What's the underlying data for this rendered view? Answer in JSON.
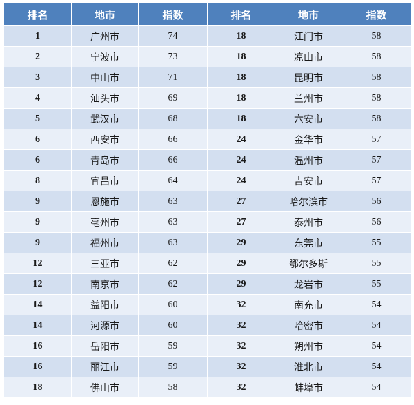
{
  "table": {
    "headers": [
      "排名",
      "地市",
      "指数",
      "排名",
      "地市",
      "指数"
    ],
    "rows": [
      {
        "left": {
          "rank": "1",
          "city": "广州市",
          "index": "74"
        },
        "right": {
          "rank": "18",
          "city": "江门市",
          "index": "58"
        }
      },
      {
        "left": {
          "rank": "2",
          "city": "宁波市",
          "index": "73"
        },
        "right": {
          "rank": "18",
          "city": "凉山市",
          "index": "58"
        }
      },
      {
        "left": {
          "rank": "3",
          "city": "中山市",
          "index": "71"
        },
        "right": {
          "rank": "18",
          "city": "昆明市",
          "index": "58"
        }
      },
      {
        "left": {
          "rank": "4",
          "city": "汕头市",
          "index": "69"
        },
        "right": {
          "rank": "18",
          "city": "兰州市",
          "index": "58"
        }
      },
      {
        "left": {
          "rank": "5",
          "city": "武汉市",
          "index": "68"
        },
        "right": {
          "rank": "18",
          "city": "六安市",
          "index": "58"
        }
      },
      {
        "left": {
          "rank": "6",
          "city": "西安市",
          "index": "66"
        },
        "right": {
          "rank": "24",
          "city": "金华市",
          "index": "57"
        }
      },
      {
        "left": {
          "rank": "6",
          "city": "青岛市",
          "index": "66"
        },
        "right": {
          "rank": "24",
          "city": "温州市",
          "index": "57"
        }
      },
      {
        "left": {
          "rank": "8",
          "city": "宜昌市",
          "index": "64"
        },
        "right": {
          "rank": "24",
          "city": "吉安市",
          "index": "57"
        }
      },
      {
        "left": {
          "rank": "9",
          "city": "恩施市",
          "index": "63"
        },
        "right": {
          "rank": "27",
          "city": "哈尔滨市",
          "index": "56"
        }
      },
      {
        "left": {
          "rank": "9",
          "city": "亳州市",
          "index": "63"
        },
        "right": {
          "rank": "27",
          "city": "泰州市",
          "index": "56"
        }
      },
      {
        "left": {
          "rank": "9",
          "city": "福州市",
          "index": "63"
        },
        "right": {
          "rank": "29",
          "city": "东莞市",
          "index": "55"
        }
      },
      {
        "left": {
          "rank": "12",
          "city": "三亚市",
          "index": "62"
        },
        "right": {
          "rank": "29",
          "city": "鄂尔多斯",
          "index": "55"
        }
      },
      {
        "left": {
          "rank": "12",
          "city": "南京市",
          "index": "62"
        },
        "right": {
          "rank": "29",
          "city": "龙岩市",
          "index": "55"
        }
      },
      {
        "left": {
          "rank": "14",
          "city": "益阳市",
          "index": "60"
        },
        "right": {
          "rank": "32",
          "city": "南充市",
          "index": "54"
        }
      },
      {
        "left": {
          "rank": "14",
          "city": "河源市",
          "index": "60"
        },
        "right": {
          "rank": "32",
          "city": "哈密市",
          "index": "54"
        }
      },
      {
        "left": {
          "rank": "16",
          "city": "岳阳市",
          "index": "59"
        },
        "right": {
          "rank": "32",
          "city": "朔州市",
          "index": "54"
        }
      },
      {
        "left": {
          "rank": "16",
          "city": "丽江市",
          "index": "59"
        },
        "right": {
          "rank": "32",
          "city": "淮北市",
          "index": "54"
        }
      },
      {
        "left": {
          "rank": "18",
          "city": "佛山市",
          "index": "58"
        },
        "right": {
          "rank": "32",
          "city": "蚌埠市",
          "index": "54"
        }
      }
    ]
  },
  "colors": {
    "header_bg": "#4f81bd",
    "header_text": "#ffffff",
    "row_odd": "#d3dff0",
    "row_even": "#e9eff8"
  }
}
